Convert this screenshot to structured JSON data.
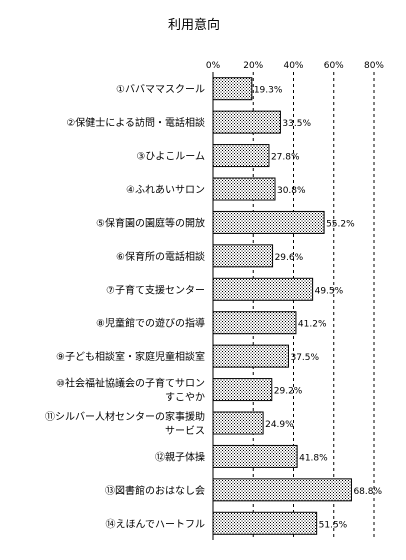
{
  "chart_data": {
    "type": "bar",
    "orientation": "horizontal",
    "title": "利用意向",
    "xlabel": "",
    "ylabel": "",
    "xlim": [
      0,
      80
    ],
    "ticks": [
      0,
      20,
      40,
      60,
      80
    ],
    "tick_labels": [
      "0%",
      "20%",
      "40%",
      "60%",
      "80%"
    ],
    "grid": "vertical dashed at 20%, 40%, 60%, 80%",
    "categories": [
      [
        "①ババママスクール"
      ],
      [
        "②保健士による訪問・電話相談"
      ],
      [
        "③ひよこルーム"
      ],
      [
        "④ふれあいサロン"
      ],
      [
        "⑤保育園の園庭等の開放"
      ],
      [
        "⑥保育所の電話相談"
      ],
      [
        "⑦子育て支援センター"
      ],
      [
        "⑧児童館での遊びの指導"
      ],
      [
        "⑨子ども相談室・家庭児童相談室"
      ],
      [
        "⑩社会福祉協議会の子育てサロン",
        "すこやか"
      ],
      [
        "⑪シルバー人材センターの家事援助",
        "サービス"
      ],
      [
        "⑫親子体操"
      ],
      [
        "⑬図書館のおはなし会"
      ],
      [
        "⑭えほんでハートフル"
      ]
    ],
    "values": [
      19.3,
      33.5,
      27.8,
      30.8,
      55.2,
      29.6,
      49.5,
      41.2,
      37.5,
      29.2,
      24.9,
      41.8,
      68.8,
      51.5
    ],
    "value_labels": [
      "19.3%",
      "33.5%",
      "27.8%",
      "30.8%",
      "55.2%",
      "29.6%",
      "49.5%",
      "41.2%",
      "37.5%",
      "29.2%",
      "24.9%",
      "41.8%",
      "68.8%",
      "51.5%"
    ],
    "bar_fill": "dotted",
    "bar_color": "#000000"
  }
}
